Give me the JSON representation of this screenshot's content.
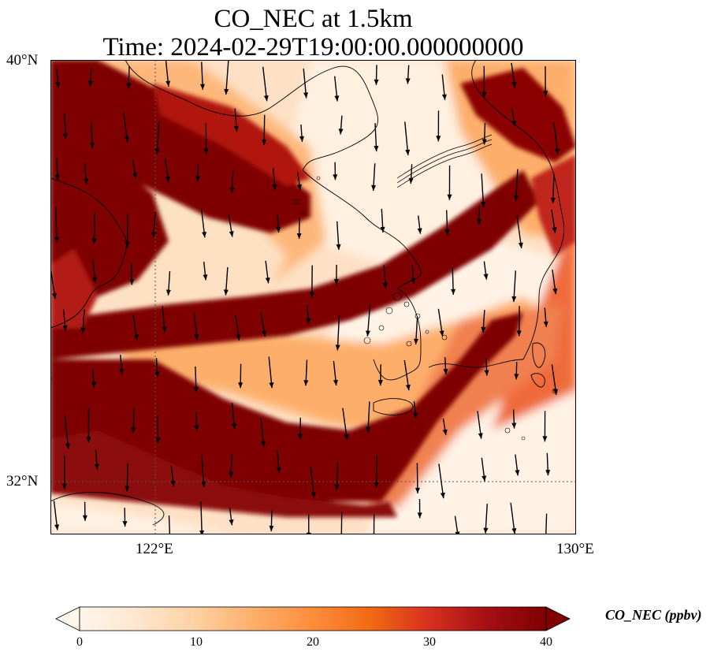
{
  "title": {
    "line1": "CO_NEC at 1.5km",
    "line2": "Time: 2024-02-29T19:00:00.000000000"
  },
  "axes": {
    "lat_labels": [
      "40°N",
      "32°N"
    ],
    "lon_labels": [
      "122°E",
      "130°E"
    ]
  },
  "colorbar": {
    "label": "CO_NEC (ppbv)",
    "ticks": [
      "0",
      "10",
      "20",
      "30",
      "40"
    ],
    "range": [
      0,
      40
    ],
    "extend": "both",
    "colormap": [
      "#fff5eb",
      "#fee6ce",
      "#fdd0a2",
      "#fdae6b",
      "#fd8d3c",
      "#f16913",
      "#d7301f",
      "#a50f15",
      "#7f0000"
    ]
  },
  "map": {
    "projection": "Lambert Conformal",
    "extent_lon": [
      120,
      130
    ],
    "extent_lat": [
      31,
      40
    ],
    "gridlines": "dotted",
    "features": [
      "coastlines",
      "wind-vectors"
    ]
  }
}
